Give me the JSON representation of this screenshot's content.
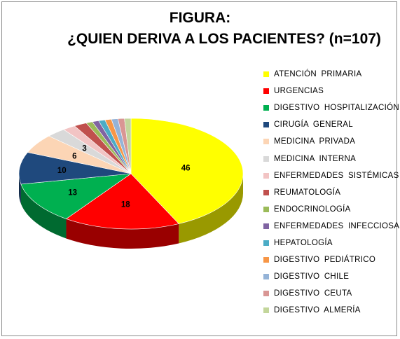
{
  "title": "FIGURA:",
  "subtitle": "¿QUIEN DERIVA A LOS PACIENTES? (n=107)",
  "chart_data": {
    "type": "pie",
    "title": "FIGURA:",
    "subtitle": "¿QUIEN DERIVA A LOS PACIENTES? (n=107)",
    "legend_position": "right",
    "categories": [
      "ATENCIÓN PRIMARIA",
      "URGENCIAS",
      "DIGESTIVO HOSPITALIZACIÓN",
      "CIRUGÍA GENERAL",
      "MEDICINA PRIVADA",
      "MEDICINA INTERNA",
      "ENFERMEDADES SISTÉMICAS",
      "REUMATOLOGÍA",
      "ENDOCRINOLOGÍA",
      "ENFERMEDADES INFECCIOSAS",
      "HEPATOLOGÍA",
      "DIGESTIVO PEDIÁTRICO",
      "DIGESTIVO CHILE",
      "DIGESTIVO CEUTA",
      "DIGESTIVO ALMERÍA"
    ],
    "values": [
      46,
      18,
      13,
      10,
      6,
      3,
      2,
      2,
      1,
      1,
      1,
      1,
      1,
      1,
      1
    ],
    "data_labels": [
      "46",
      "18",
      "13",
      "10",
      "6",
      "3",
      "",
      "",
      "",
      "",
      "",
      "",
      "",
      "",
      ""
    ],
    "colors": [
      "#ffff00",
      "#ff0000",
      "#00b050",
      "#1f497d",
      "#fcd5b5",
      "#d9d9d9",
      "#f2c4c4",
      "#c0504d",
      "#9bbb59",
      "#8064a2",
      "#4bacc6",
      "#f79646",
      "#95b3d7",
      "#d99694",
      "#c3d69b"
    ]
  }
}
